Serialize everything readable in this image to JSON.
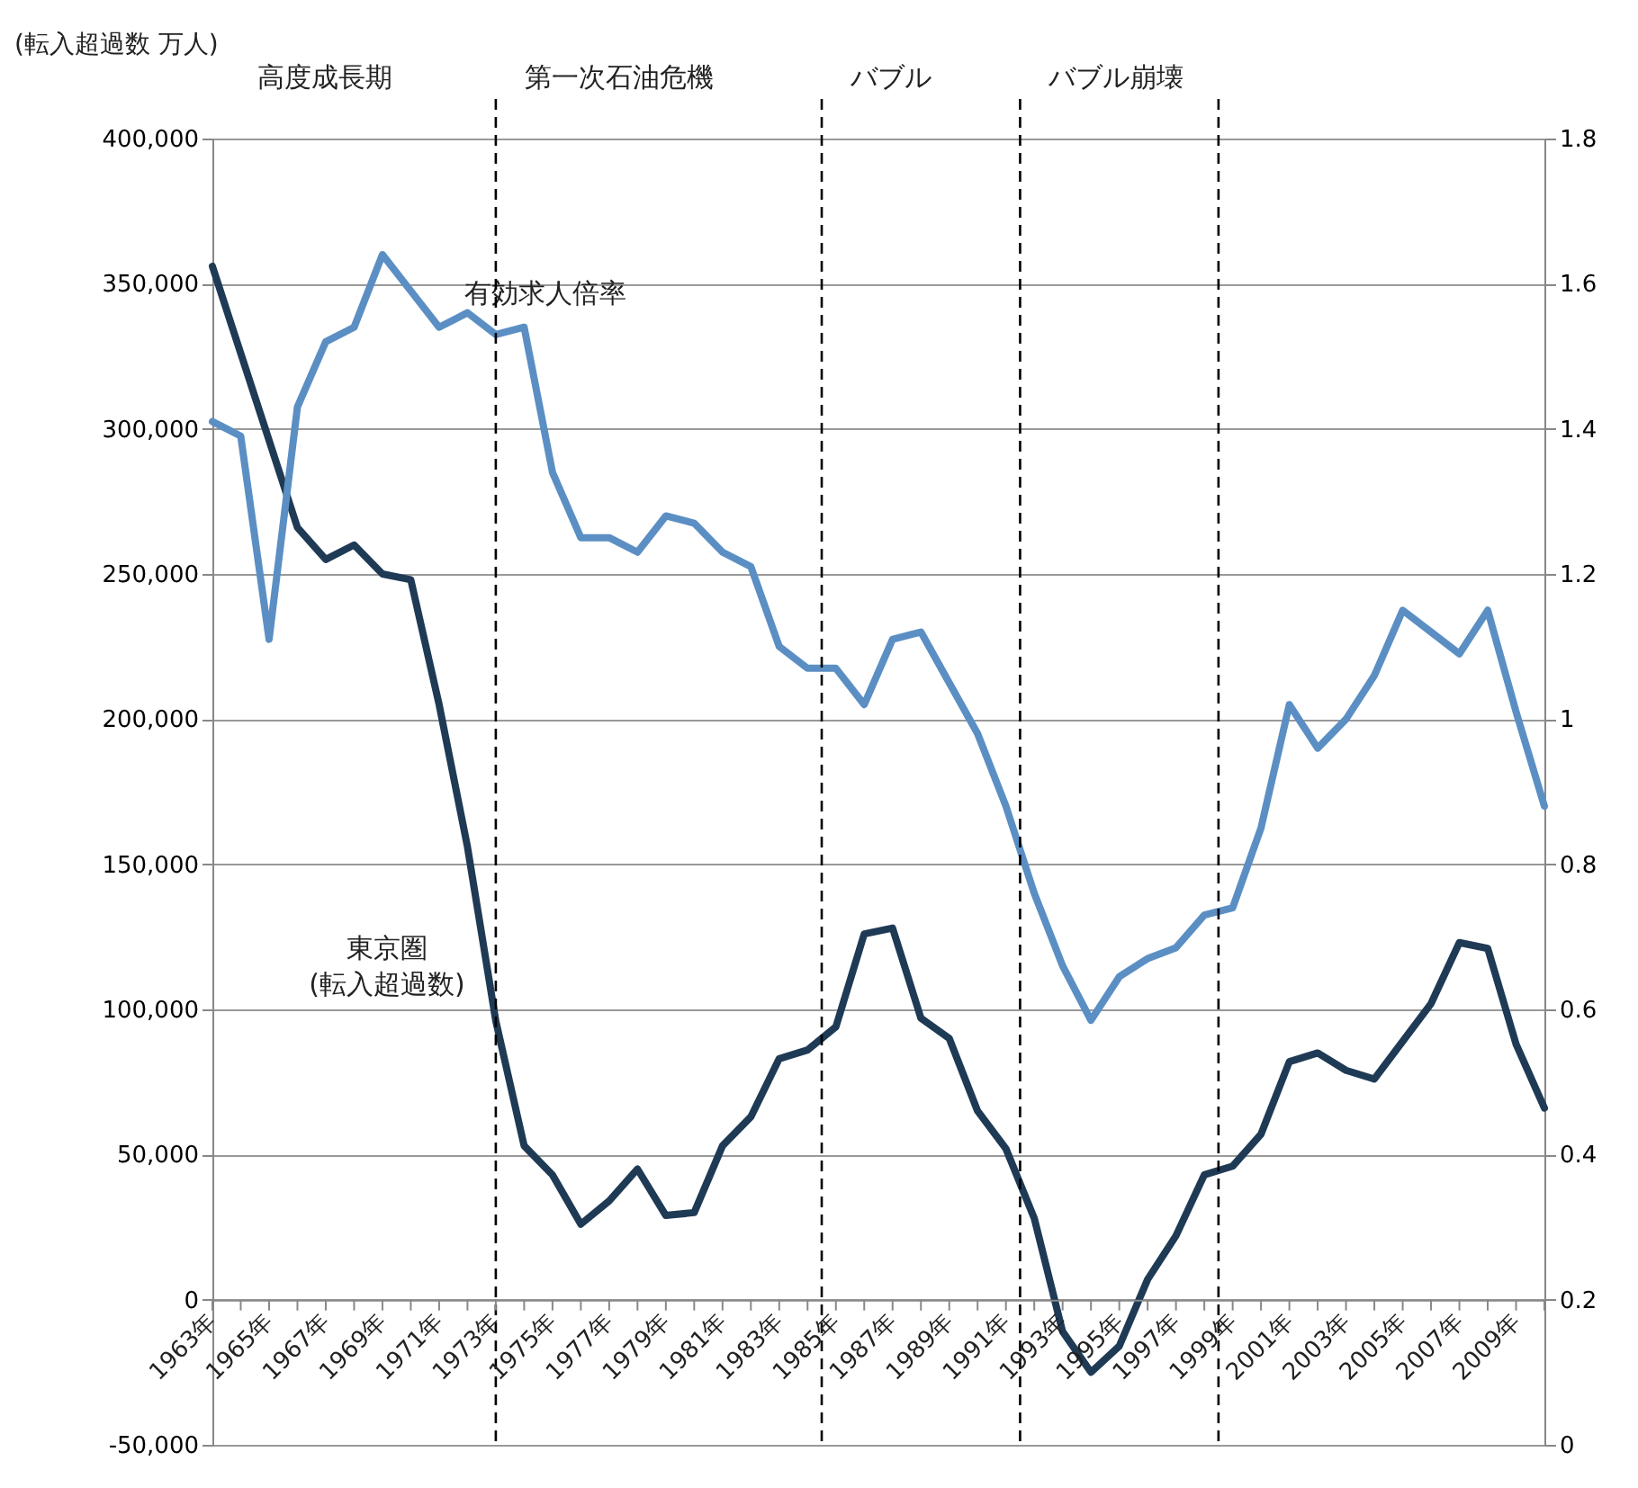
{
  "chart_data": {
    "type": "line",
    "ylabel": "(転入超過数 万人)",
    "x": [
      1963,
      1964,
      1965,
      1966,
      1967,
      1968,
      1969,
      1970,
      1971,
      1972,
      1973,
      1974,
      1975,
      1976,
      1977,
      1978,
      1979,
      1980,
      1981,
      1982,
      1983,
      1984,
      1985,
      1986,
      1987,
      1988,
      1989,
      1990,
      1991,
      1992,
      1993,
      1994,
      1995,
      1996,
      1997,
      1998,
      1999,
      2000,
      2001,
      2002,
      2003,
      2004,
      2005,
      2006,
      2007,
      2008,
      2009,
      2010
    ],
    "xlim": [
      1963,
      2010
    ],
    "xticks": [
      {
        "value": 1963,
        "label": "1963年"
      },
      {
        "value": 1964,
        "label": null
      },
      {
        "value": 1965,
        "label": "1965年"
      },
      {
        "value": 1966,
        "label": null
      },
      {
        "value": 1967,
        "label": "1967年"
      },
      {
        "value": 1968,
        "label": null
      },
      {
        "value": 1969,
        "label": "1969年"
      },
      {
        "value": 1970,
        "label": null
      },
      {
        "value": 1971,
        "label": "1971年"
      },
      {
        "value": 1972,
        "label": null
      },
      {
        "value": 1973,
        "label": "1973年"
      },
      {
        "value": 1974,
        "label": null
      },
      {
        "value": 1975,
        "label": "1975年"
      },
      {
        "value": 1976,
        "label": null
      },
      {
        "value": 1977,
        "label": "1977年"
      },
      {
        "value": 1978,
        "label": null
      },
      {
        "value": 1979,
        "label": "1979年"
      },
      {
        "value": 1980,
        "label": null
      },
      {
        "value": 1981,
        "label": "1981年"
      },
      {
        "value": 1982,
        "label": null
      },
      {
        "value": 1983,
        "label": "1983年"
      },
      {
        "value": 1984,
        "label": null
      },
      {
        "value": 1985,
        "label": "1985年"
      },
      {
        "value": 1986,
        "label": null
      },
      {
        "value": 1987,
        "label": "1987年"
      },
      {
        "value": 1988,
        "label": null
      },
      {
        "value": 1989,
        "label": "1989年"
      },
      {
        "value": 1990,
        "label": null
      },
      {
        "value": 1991,
        "label": "1991年"
      },
      {
        "value": 1992,
        "label": null
      },
      {
        "value": 1993,
        "label": "1993年"
      },
      {
        "value": 1994,
        "label": null
      },
      {
        "value": 1995,
        "label": "1995年"
      },
      {
        "value": 1996,
        "label": null
      },
      {
        "value": 1997,
        "label": "1997年"
      },
      {
        "value": 1998,
        "label": null
      },
      {
        "value": 1999,
        "label": "1999年"
      },
      {
        "value": 2000,
        "label": null
      },
      {
        "value": 2001,
        "label": "2001年"
      },
      {
        "value": 2002,
        "label": null
      },
      {
        "value": 2003,
        "label": "2003年"
      },
      {
        "value": 2004,
        "label": null
      },
      {
        "value": 2005,
        "label": "2005年"
      },
      {
        "value": 2006,
        "label": null
      },
      {
        "value": 2007,
        "label": "2007年"
      },
      {
        "value": 2008,
        "label": null
      },
      {
        "value": 2009,
        "label": "2009年"
      },
      {
        "value": 2010,
        "label": null
      }
    ],
    "ylim": [
      -50000,
      400000
    ],
    "yticks": [
      {
        "value": -50000,
        "label": "-50,000"
      },
      0,
      {
        "value": 50000,
        "label": "50,000"
      },
      {
        "value": 100000,
        "label": "100,000"
      },
      {
        "value": 150000,
        "label": "150,000"
      },
      {
        "value": 200000,
        "label": "200,000"
      },
      {
        "value": 250000,
        "label": "250,000"
      },
      {
        "value": 300000,
        "label": "300,000"
      },
      {
        "value": 350000,
        "label": "350,000"
      },
      {
        "value": 400000,
        "label": "400,000"
      }
    ],
    "y2lim": [
      0,
      1.8
    ],
    "y2ticks": [
      0,
      0.2,
      0.4,
      0.6,
      0.8,
      1,
      1.2,
      1.4,
      1.6,
      1.8
    ],
    "series": [
      {
        "name": "東京圏\n(転入超過数)",
        "color": "#1f3a55",
        "values": [
          356000,
          326000,
          296000,
          266000,
          255000,
          260000,
          250000,
          248000,
          205000,
          156000,
          96000,
          53000,
          43000,
          26000,
          34000,
          45000,
          29000,
          30000,
          53000,
          63000,
          83000,
          86000,
          94000,
          126000,
          128000,
          97000,
          90000,
          65000,
          52000,
          28000,
          -11000,
          -25000,
          -16000,
          7000,
          22000,
          43000,
          46000,
          57000,
          82000,
          85000,
          79000,
          76000,
          89000,
          102000,
          123000,
          121000,
          88000,
          66000
        ]
      },
      {
        "name": "有効求人倍率",
        "color": "#5b8fc4",
        "axis": "y2",
        "values": [
          1.41,
          1.39,
          1.11,
          1.43,
          1.52,
          1.54,
          1.64,
          1.59,
          1.54,
          1.56,
          1.53,
          1.54,
          1.34,
          1.25,
          1.25,
          1.23,
          1.28,
          1.27,
          1.23,
          1.21,
          1.1,
          1.07,
          1.07,
          1.02,
          1.11,
          1.12,
          1.05,
          0.98,
          0.88,
          0.76,
          0.66,
          0.585,
          0.645,
          0.67,
          0.685,
          0.73,
          0.74,
          0.85,
          1.02,
          0.96,
          1.0,
          1.06,
          1.15,
          1.12,
          1.09,
          1.15,
          1.01,
          0.88
        ]
      }
    ],
    "ref_lines": [
      {
        "axis": "x",
        "value": 1973,
        "label": "第一次石油危機",
        "color": "#000000",
        "line_style": "dashed"
      },
      {
        "axis": "x",
        "value": 1984.5,
        "label": "バブル",
        "color": "#000000",
        "line_style": "dashed"
      },
      {
        "axis": "x",
        "value": 1991.5,
        "label": "バブル崩壊",
        "color": "#000000",
        "line_style": "dashed"
      },
      {
        "axis": "x",
        "value": 1998.5,
        "label": null,
        "color": "#000000",
        "line_style": "dashed"
      }
    ],
    "annotations": [
      "高度成長期"
    ],
    "grid": "y",
    "marker": "none",
    "line_style": "solid"
  }
}
